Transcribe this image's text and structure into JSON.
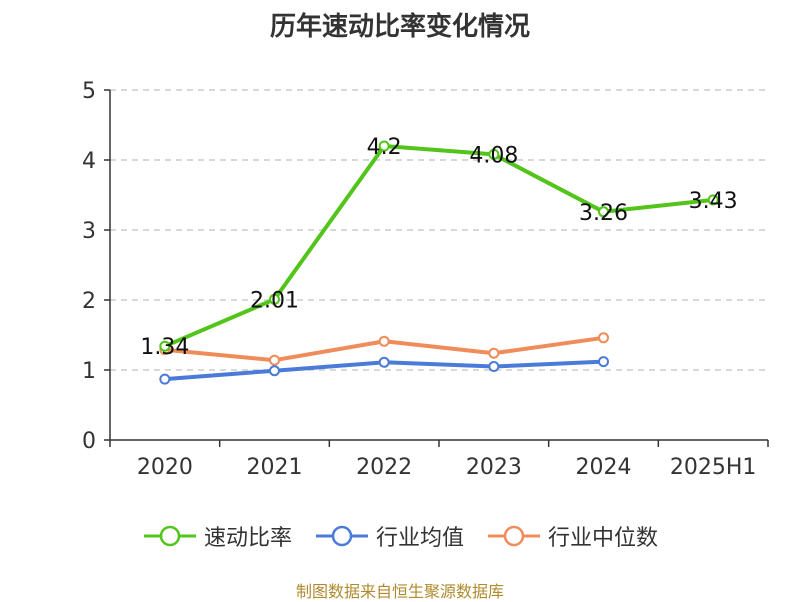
{
  "title": "历年速动比率变化情况",
  "source_note": "制图数据来自恒生聚源数据库",
  "colors": {
    "速动比率": "#52c41a",
    "行业均值": "#4a7bd8",
    "行业中位数": "#f08c5a",
    "grid": "#cccccc",
    "axis": "#333333"
  },
  "chart_data": {
    "type": "line",
    "title": "历年速动比率变化情况",
    "categories": [
      "2020",
      "2021",
      "2022",
      "2023",
      "2024",
      "2025H1"
    ],
    "ylim": [
      0,
      5
    ],
    "yticks": [
      0,
      1,
      2,
      3,
      4,
      5
    ],
    "grid": true,
    "legend_position": "bottom",
    "series": [
      {
        "name": "速动比率",
        "values": [
          1.34,
          2.01,
          4.2,
          4.08,
          3.26,
          3.43
        ],
        "labels": [
          "1.34",
          "2.01",
          "4.2",
          "4.08",
          "3.26",
          "3.43"
        ]
      },
      {
        "name": "行业均值",
        "values": [
          0.87,
          0.99,
          1.11,
          1.05,
          1.12,
          null
        ]
      },
      {
        "name": "行业中位数",
        "values": [
          1.29,
          1.14,
          1.41,
          1.24,
          1.46,
          null
        ]
      }
    ]
  }
}
